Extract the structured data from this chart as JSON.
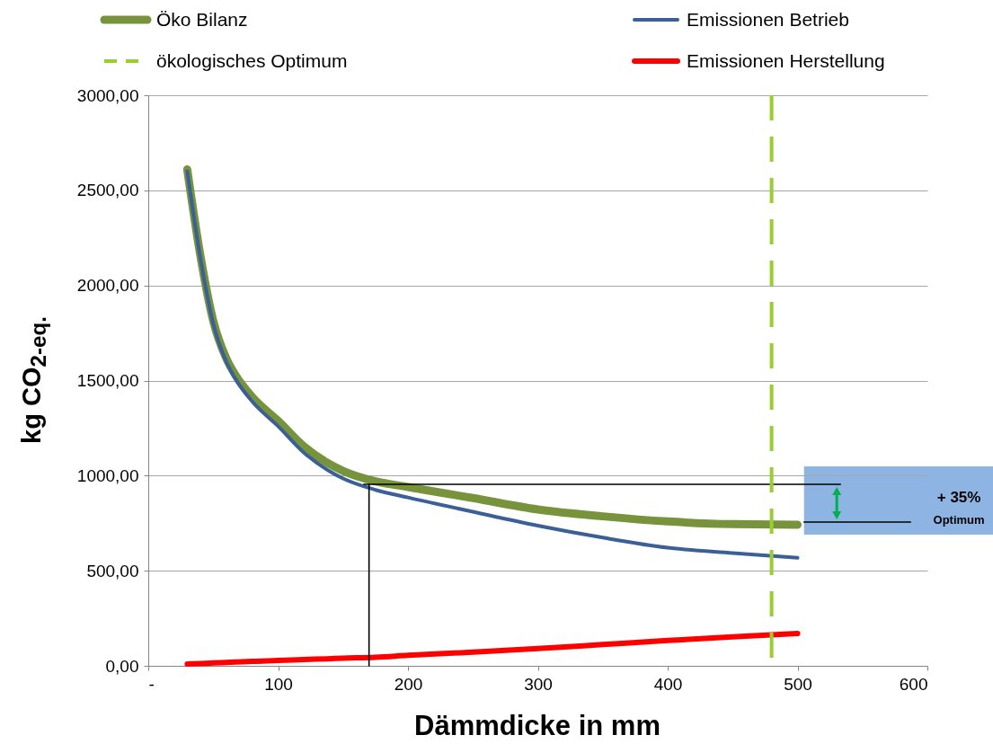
{
  "chart_data": {
    "type": "line",
    "xlabel": "Dämmdicke in mm",
    "ylabel": "kg CO$_{2-eq.}$",
    "x": [
      30,
      40,
      50,
      60,
      67,
      80,
      100,
      120,
      138,
      150,
      175,
      200,
      250,
      300,
      350,
      400,
      450,
      500
    ],
    "series": [
      {
        "name": "Öko Bilanz",
        "color": "#77933c",
        "values": [
          2610,
          2162,
          1815,
          1618,
          1530,
          1414,
          1288,
          1153,
          1067,
          1025,
          970,
          940,
          882,
          822,
          786,
          759,
          745,
          742
        ]
      },
      {
        "name": "Emissionen Betrieb",
        "color": "#3a6096",
        "values": [
          2600,
          2150,
          1800,
          1600,
          1510,
          1390,
          1260,
          1120,
          1030,
          985,
          925,
          885,
          810,
          737,
          674,
          621,
          593,
          568
        ]
      },
      {
        "name": "Emissionen Herstellung",
        "color": "#ff0000",
        "values": [
          10,
          12,
          15,
          18,
          20,
          24,
          28,
          33,
          37,
          40,
          45,
          55,
          72,
          91,
          112,
          133,
          152,
          170
        ]
      },
      {
        "color": "#000000",
        "x": [
          170,
          170
        ],
        "values": [
          0,
          954
        ]
      },
      {
        "color": "#000000",
        "x": [
          166,
          533
        ],
        "values": [
          954,
          954
        ]
      },
      {
        "color": "#000000",
        "x": [
          505,
          587
        ],
        "values": [
          756,
          756
        ]
      }
    ],
    "ref_lines": [
      {
        "axis": "x",
        "value": 480,
        "label": "ökologisches Optimum",
        "color": "#9acd32",
        "line_style": "dashed"
      }
    ],
    "annotations": [
      "+ 35%",
      "Optimum"
    ],
    "xlim": [
      0,
      600
    ],
    "xticks": [
      {
        "value": 0,
        "label": "-"
      },
      100,
      200,
      300,
      400,
      500,
      600
    ],
    "ylim": [
      0,
      3000
    ],
    "yticks": [
      {
        "value": 0,
        "label": "0,00"
      },
      {
        "value": 500,
        "label": "500,00"
      },
      {
        "value": 1000,
        "label": "1000,00"
      },
      {
        "value": 1500,
        "label": "1500,00"
      },
      {
        "value": 2000,
        "label": "2000,00"
      },
      {
        "value": 2500,
        "label": "2500,00"
      },
      {
        "value": 3000,
        "label": "3000,00"
      }
    ],
    "grid": "y",
    "legend": "top",
    "line_style": "solid",
    "marker": "none"
  }
}
